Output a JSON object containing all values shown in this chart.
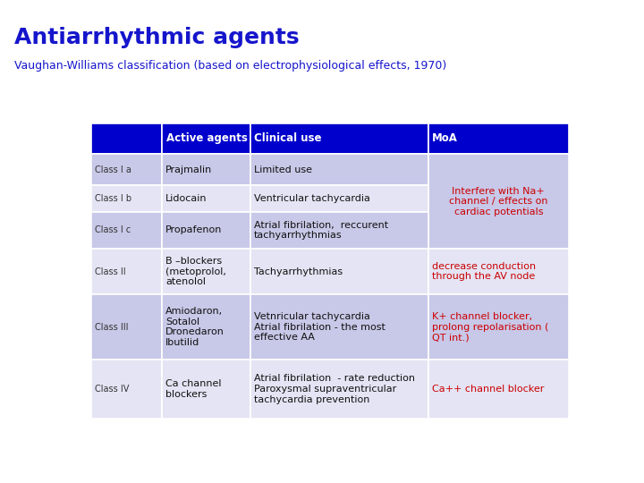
{
  "title": "Antiarrhythmic agents",
  "subtitle": "Vaughan-Williams classification (based on electrophysiological effects, 1970)",
  "title_color": "#1515cc",
  "subtitle_color": "#1515cc",
  "bg_color": "#ffffff",
  "header_bg": "#0000cc",
  "header_text_color": "#ffffff",
  "row_bg_A": "#c8c8e8",
  "row_bg_B": "#e4e4f4",
  "text_color": "#111111",
  "class_color": "#333333",
  "moa_color": "#cc0000",
  "col_headers": [
    "Active agents",
    "Clinical use",
    "MoA"
  ],
  "rows": [
    {
      "class": "Class I a",
      "agents": "Prajmalin",
      "clinical": "Limited use",
      "moa": "Interfere with Na+\nchannel / effects on\ncardiac potentials",
      "bg": "A"
    },
    {
      "class": "Class I b",
      "agents": "Lidocain",
      "clinical": "Ventricular tachycardia",
      "moa": "",
      "bg": "B"
    },
    {
      "class": "Class I c",
      "agents": "Propafenon",
      "clinical": "Atrial fibrilation,  reccurent\ntachyarrhythmias",
      "moa": "",
      "bg": "A"
    },
    {
      "class": "Class II",
      "agents": "B –blockers\n(metoprolol,\natenolol",
      "clinical": "Tachyarrhythmias",
      "moa": "decrease conduction\nthrough the AV node",
      "bg": "B"
    },
    {
      "class": "Class III",
      "agents": "Amiodaron,\nSotalol\nDronedaron\nIbutilid",
      "clinical": "Vetnricular tachycardia\nAtrial fibrilation - the most\neffective AA",
      "moa": "K+ channel blocker,\nprolong repolarisation (\nQT int.)",
      "bg": "A"
    },
    {
      "class": "Class IV",
      "agents": "Ca channel\nblockers",
      "clinical": "Atrial fibrilation  - rate reduction\nParoxysmal supraventricular\ntachycardia prevention",
      "moa": "Ca++ channel blocker",
      "bg": "B"
    }
  ]
}
